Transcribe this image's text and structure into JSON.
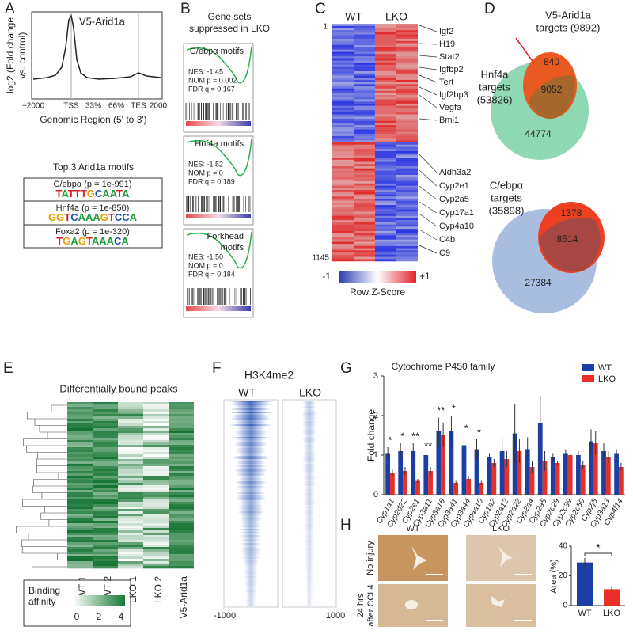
{
  "panels": {
    "A": {
      "letter": "A",
      "profile_label": "V5-Arid1a",
      "y_label": [
        "log2 (Fold change",
        "vs. control)"
      ],
      "x_ticks": [
        "−2000",
        "TSS",
        "33%",
        "66%",
        "TES",
        "2000"
      ],
      "x_label": "Genomic Region (5' to 3')",
      "motif_title": "Top 3 Arid1a motifs",
      "motifs": [
        {
          "label": "C/ebpα (p = 1e-991)",
          "logo": "TATTTGCAATA"
        },
        {
          "label": "Hnf4a (p = 1e-850)",
          "logo": "GGTCAAAGTCCA"
        },
        {
          "label": "Foxa2 (p = 1e-320)",
          "logo": "TGAGTAAACA"
        }
      ]
    },
    "B": {
      "letter": "B",
      "title": [
        "Gene sets",
        "suppressed in LKO"
      ],
      "gsea": [
        {
          "name": [
            "C/ebpα motifs"
          ],
          "stats": [
            "NES: -1.45",
            "NOM p = 0.002",
            "FDR q = 0.167"
          ]
        },
        {
          "name": [
            "Hnf4a motifs"
          ],
          "stats": [
            "NES: -1.52",
            "NOM p = 0",
            "FDR q = 0.189"
          ]
        },
        {
          "name": [
            "Forkhead",
            "motifs"
          ],
          "stats": [
            "NES: -1.50",
            "NOM p = 0",
            "FDR q = 0.184"
          ]
        }
      ]
    },
    "C": {
      "letter": "C",
      "columns": [
        "WT",
        "LKO"
      ],
      "row_start": "1",
      "row_end": "1145",
      "genes_up": [
        "Igf2",
        "H19",
        "Stat2",
        "Igfbp2",
        "Tert",
        "Igf2bp3",
        "Vegfa",
        "Bmi1"
      ],
      "genes_down": [
        "Aldh3a2",
        "Cyp2e1",
        "Cyp2a5",
        "Cyp17a1",
        "Cyp4a10",
        "C4b",
        "C9"
      ],
      "scale": [
        "-1",
        "+1"
      ],
      "scale_label": "Row Z-Score"
    },
    "D": {
      "letter": "D",
      "top": {
        "set_a": [
          "V5-Arid1a",
          "targets (9892)"
        ],
        "set_b": [
          "Hnf4a",
          "targets",
          "(53826)"
        ],
        "only_a": "840",
        "both": "9052",
        "only_b": "44774"
      },
      "bottom": {
        "set_b": [
          "C/ebpα",
          "targets",
          "(35898)"
        ],
        "only_a": "1378",
        "both": "8514",
        "only_b": "27384"
      }
    },
    "E": {
      "letter": "E",
      "title": "Differentially bound peaks",
      "columns": [
        "WT 1",
        "WT 2",
        "LKO 1",
        "LKO 2",
        "V5-Arid1a"
      ],
      "legend_title": [
        "Binding",
        "affinity"
      ],
      "legend_ticks": [
        "0",
        "2",
        "4"
      ]
    },
    "F": {
      "letter": "F",
      "title": "H3K4me2",
      "columns": [
        "WT",
        "LKO"
      ],
      "x_ticks": [
        "-1000",
        "1000"
      ]
    },
    "G": {
      "letter": "G"
    },
    "H": {
      "letter": "H",
      "columns": [
        "WT",
        "LKO"
      ],
      "rows": [
        [
          "No injury"
        ],
        [
          "24 hrs",
          "after CCL4"
        ]
      ]
    }
  },
  "chart_data": [
    {
      "type": "bar",
      "title": "Cytochrome P450 family",
      "y_label": "Fold change",
      "categories": [
        "Cyp1a1",
        "Cyp2d22",
        "Cyp2e1",
        "Cyp3a11",
        "Cyp3a16",
        "Cyp3a41",
        "Cyp3a44",
        "Cyp4a10",
        "Cyp1a2",
        "Cyp2a12",
        "Cyp2a22",
        "Cyp2a4",
        "Cyp2a5",
        "Cyp2c29",
        "Cyp2c39",
        "Cyp2c50",
        "Cyp2j5",
        "Cyp3a13",
        "Cyp4f14"
      ],
      "series": [
        {
          "name": "WT",
          "color": "#1c3fa6",
          "values": [
            1.05,
            1.1,
            1.1,
            1.0,
            1.6,
            1.6,
            1.25,
            1.15,
            0.95,
            1.1,
            1.55,
            1.15,
            1.8,
            0.95,
            1.05,
            1.0,
            1.35,
            1.1,
            1.05
          ],
          "errors": [
            0.15,
            0.2,
            0.2,
            0.05,
            0.35,
            0.4,
            0.25,
            0.25,
            0.1,
            0.35,
            0.75,
            0.3,
            0.7,
            0.1,
            0.1,
            0.1,
            0.3,
            0.2,
            0.1
          ]
        },
        {
          "name": "LKO",
          "color": "#e8302a",
          "values": [
            0.55,
            0.6,
            0.35,
            0.6,
            1.5,
            0.3,
            0.4,
            0.3,
            0.8,
            0.9,
            1.1,
            0.7,
            0.85,
            0.8,
            1.0,
            0.75,
            1.3,
            0.95,
            0.7
          ],
          "errors": [
            0.1,
            0.1,
            0.05,
            0.1,
            0.3,
            0.05,
            0.05,
            0.05,
            0.1,
            0.2,
            0.3,
            0.15,
            0.25,
            0.05,
            0.05,
            0.1,
            0.3,
            0.15,
            0.1
          ]
        }
      ],
      "annotations": [
        "*",
        "*",
        "**",
        "**",
        "**",
        "*",
        "*",
        "*",
        null,
        null,
        null,
        null,
        null,
        null,
        null,
        null,
        null,
        null,
        null
      ],
      "ylim": [
        0,
        3
      ],
      "yticks": [
        0,
        1,
        2,
        3
      ],
      "legend": "top-right"
    },
    {
      "type": "bar",
      "y_label": "Area (%)",
      "categories": [
        "WT",
        "LKO"
      ],
      "values": [
        29,
        11
      ],
      "errors": [
        3,
        1.5
      ],
      "colors": [
        "#1c3fa6",
        "#e8302a"
      ],
      "annotation": "*",
      "ylim": [
        0,
        40
      ],
      "yticks": [
        0,
        20,
        40
      ]
    }
  ]
}
